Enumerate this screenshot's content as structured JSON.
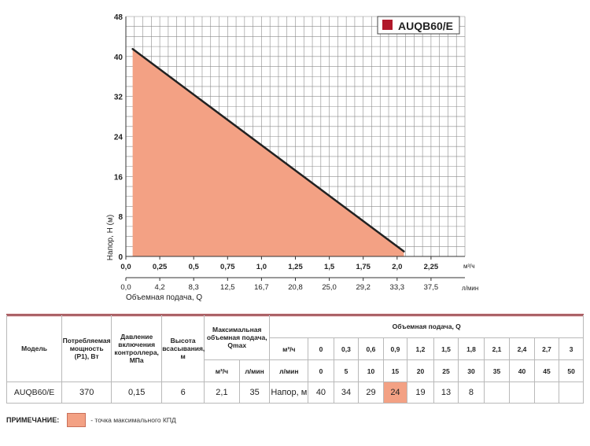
{
  "chart_data": {
    "type": "line",
    "legend_label": "AUQB60/E",
    "legend_color": "#b0182a",
    "fill_color": "#f3a184",
    "line_color": "#222222",
    "grid": true,
    "x": [
      0.05,
      2.05
    ],
    "y": [
      41.5,
      1
    ],
    "xlim": [
      0,
      2.5
    ],
    "ylim": [
      0,
      48
    ],
    "yticks": [
      0,
      8,
      16,
      24,
      32,
      40,
      48
    ],
    "ylabel": "Напор, Н (м)",
    "xticks_m3h": [
      "0,0",
      "0,25",
      "0,5",
      "0,75",
      "1,0",
      "1,25",
      "1,5",
      "1,75",
      "2,0",
      "2,25"
    ],
    "xunit_m3h": "м³/ч",
    "xticks_lmin": [
      "0,0",
      "4,2",
      "8,3",
      "12,5",
      "16,7",
      "20,8",
      "25,0",
      "29,2",
      "33,3",
      "37,5"
    ],
    "xunit_lmin": "л/мин",
    "xlabel": "Объемная подача, Q"
  },
  "table": {
    "h_model": "Модель",
    "h_power": "Потребляемая мощность (Р1), Вт",
    "h_pressure": "Давление включения контроллера, МПа",
    "h_suction": "Высота всасывания, м",
    "h_qmax": "Максимальная объемная подача, Qmax",
    "h_qmax_m3h": "м³/ч",
    "h_qmax_lmin": "л/мин",
    "h_flow": "Объемная подача, Q",
    "h_row_m3h": "м³/ч",
    "h_row_lmin": "л/мин",
    "flow_m3h": [
      "0",
      "0,3",
      "0,6",
      "0,9",
      "1,2",
      "1,5",
      "1,8",
      "2,1",
      "2,4",
      "2,7",
      "3"
    ],
    "flow_lmin": [
      "0",
      "5",
      "10",
      "15",
      "20",
      "25",
      "30",
      "35",
      "40",
      "45",
      "50"
    ],
    "row": {
      "model": "AUQB60/E",
      "power": "370",
      "pressure": "0,15",
      "suction": "6",
      "qmax_m3h": "2,1",
      "qmax_lmin": "35",
      "head_label": "Напор, м",
      "heads": [
        "40",
        "34",
        "29",
        "24",
        "19",
        "13",
        "8",
        "",
        "",
        "",
        ""
      ]
    }
  },
  "note": {
    "label": "ПРИМЕЧАНИЕ:",
    "text": "- точка максимального КПД"
  }
}
